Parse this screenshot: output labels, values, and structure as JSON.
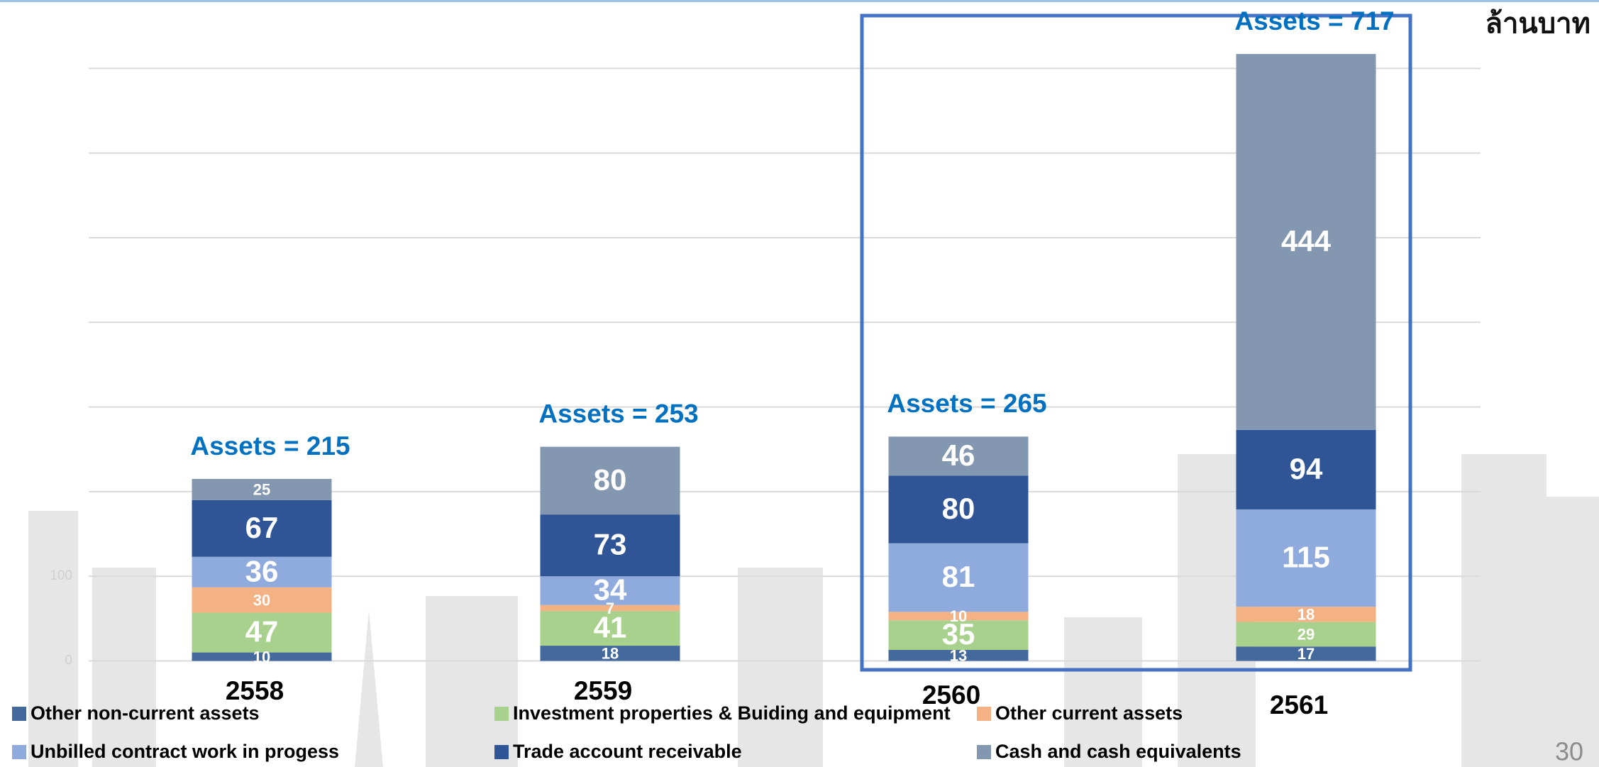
{
  "chart_data": {
    "type": "stacked-bar",
    "unit_label": "ล้านบาท",
    "page_number": "30",
    "categories": [
      "2558",
      "2559",
      "2560",
      "2561"
    ],
    "annotations": [
      "Assets = 215",
      "Assets = 253",
      "Assets = 265",
      "Assets = 717"
    ],
    "series": [
      {
        "name": "Other non-current assets",
        "color": "#44699d",
        "values": [
          10,
          18,
          13,
          17
        ]
      },
      {
        "name": "Investment properties & Buiding and equipment",
        "color": "#a9d18e",
        "values": [
          47,
          41,
          35,
          29
        ]
      },
      {
        "name": "Other current assets",
        "color": "#f4b183",
        "values": [
          30,
          7,
          10,
          18
        ]
      },
      {
        "name": "Unbilled contract work in progess",
        "color": "#8faadc",
        "values": [
          36,
          34,
          81,
          115
        ]
      },
      {
        "name": "Trade account receivable",
        "color": "#2f5597",
        "values": [
          67,
          73,
          80,
          94
        ]
      },
      {
        "name": "Cash and cash equivalents",
        "color": "#8497b0",
        "values": [
          25,
          80,
          46,
          444
        ]
      }
    ],
    "ylim": [
      0,
      700
    ],
    "yticks": [
      0,
      100
    ],
    "grid": true
  }
}
